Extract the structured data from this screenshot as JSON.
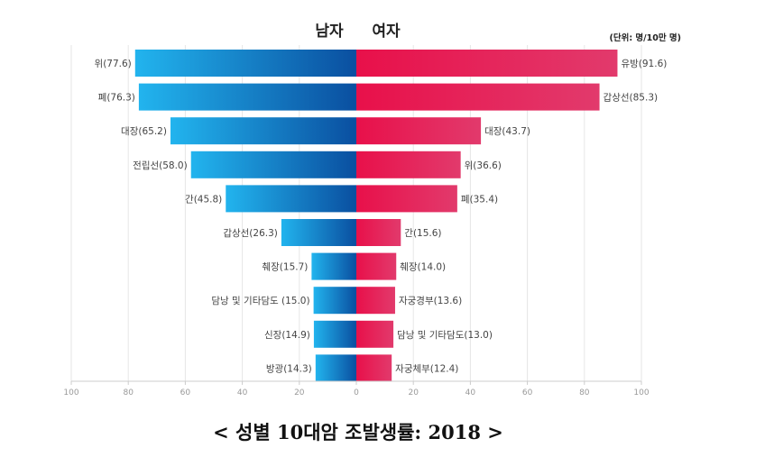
{
  "chart_data": {
    "type": "bar",
    "orientation": "horizontal-butterfly",
    "title": "< 성별 10대암 조발생률: 2018 >",
    "unit": "(단위: 명/10만 명)",
    "xlim": [
      -100,
      100
    ],
    "xticks": [
      "100",
      "80",
      "60",
      "40",
      "20",
      "0",
      "20",
      "40",
      "60",
      "80",
      "100"
    ],
    "grid": true,
    "colors": {
      "male_light": "#22b4ee",
      "male_dark": "#0a4fa0",
      "female_dark": "#e8104a",
      "female_light": "#e23a6c"
    },
    "series": [
      {
        "name": "남자",
        "side": "left",
        "categories": [
          "위",
          "폐",
          "대장",
          "전립선",
          "간",
          "갑상선",
          "췌장",
          "담낭 및 기타담도",
          "신장",
          "방광"
        ],
        "labels": [
          "위(77.6)",
          "폐(76.3)",
          "대장(65.2)",
          "전립선(58.0)",
          "간(45.8)",
          "갑상선(26.3)",
          "췌장(15.7)",
          "담낭 및 기타담도 (15.0)",
          "신장(14.9)",
          "방광(14.3)"
        ],
        "values": [
          77.6,
          76.3,
          65.2,
          58.0,
          45.8,
          26.3,
          15.7,
          15.0,
          14.9,
          14.3
        ]
      },
      {
        "name": "여자",
        "side": "right",
        "categories": [
          "유방",
          "갑상선",
          "대장",
          "위",
          "폐",
          "간",
          "췌장",
          "자궁경부",
          "담낭 및 기타담도",
          "자궁체부"
        ],
        "labels": [
          "유방(91.6)",
          "갑상선(85.3)",
          "대장(43.7)",
          "위(36.6)",
          "폐(35.4)",
          "간(15.6)",
          "췌장(14.0)",
          "자궁경부(13.6)",
          "담낭 및 기타담도(13.0)",
          "자궁체부(12.4)"
        ],
        "values": [
          91.6,
          85.3,
          43.7,
          36.6,
          35.4,
          15.6,
          14.0,
          13.6,
          13.0,
          12.4
        ]
      }
    ]
  }
}
